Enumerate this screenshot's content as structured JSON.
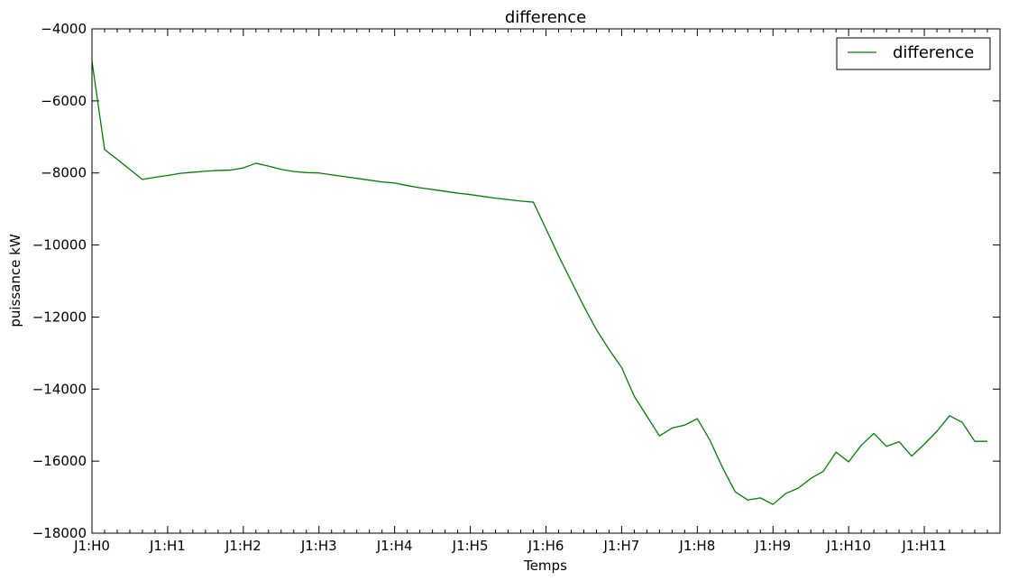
{
  "chart_data": {
    "type": "line",
    "title": "difference",
    "xlabel": "Temps",
    "ylabel": "puissance kW",
    "ylim": [
      -18000,
      -4000
    ],
    "yticks": [
      -4000,
      -6000,
      -8000,
      -10000,
      -12000,
      -14000,
      -16000,
      -18000
    ],
    "ytick_labels": [
      "−4000",
      "−6000",
      "−8000",
      "−10000",
      "−12000",
      "−14000",
      "−16000",
      "−18000"
    ],
    "xlim": [
      0,
      72
    ],
    "xticks": [
      0,
      6,
      12,
      18,
      24,
      30,
      36,
      42,
      48,
      54,
      60,
      66
    ],
    "xtick_labels": [
      "J1:H0",
      "J1:H1",
      "J1:H2",
      "J1:H3",
      "J1:H4",
      "J1:H5",
      "J1:H6",
      "J1:H7",
      "J1:H8",
      "J1:H9",
      "J1:H10",
      "J1:H11"
    ],
    "legend_position": "top-right",
    "series": [
      {
        "name": "difference",
        "color": "#008000",
        "x": [
          0,
          1,
          2,
          3,
          4,
          5,
          6,
          7,
          8,
          9,
          10,
          11,
          12,
          13,
          14,
          15,
          16,
          17,
          18,
          19,
          20,
          21,
          22,
          23,
          24,
          25,
          26,
          27,
          28,
          29,
          30,
          31,
          32,
          33,
          34,
          35,
          36,
          37,
          38,
          39,
          40,
          41,
          42,
          43,
          44,
          45,
          46,
          47,
          48,
          49,
          50,
          51,
          52,
          53,
          54,
          55,
          56,
          57,
          58,
          59,
          60,
          61,
          62,
          63,
          64,
          65,
          66,
          67,
          68,
          69,
          70,
          71
        ],
        "values": [
          -4900,
          -7350,
          -7620,
          -7900,
          -8180,
          -8120,
          -8070,
          -8010,
          -7980,
          -7950,
          -7930,
          -7920,
          -7860,
          -7730,
          -7810,
          -7900,
          -7960,
          -7990,
          -8000,
          -8050,
          -8100,
          -8150,
          -8200,
          -8250,
          -8280,
          -8350,
          -8410,
          -8460,
          -8510,
          -8560,
          -8600,
          -8650,
          -8700,
          -8740,
          -8780,
          -8810,
          -9550,
          -10300,
          -11000,
          -11700,
          -12350,
          -12900,
          -13400,
          -14200,
          -14750,
          -15300,
          -15080,
          -15000,
          -14820,
          -15420,
          -16180,
          -16850,
          -17080,
          -17020,
          -17200,
          -16900,
          -16750,
          -16480,
          -16280,
          -15750,
          -16020,
          -15560,
          -15230,
          -15590,
          -15460,
          -15860,
          -15530,
          -15170,
          -14740,
          -14920,
          -15450,
          -15450
        ]
      }
    ]
  }
}
